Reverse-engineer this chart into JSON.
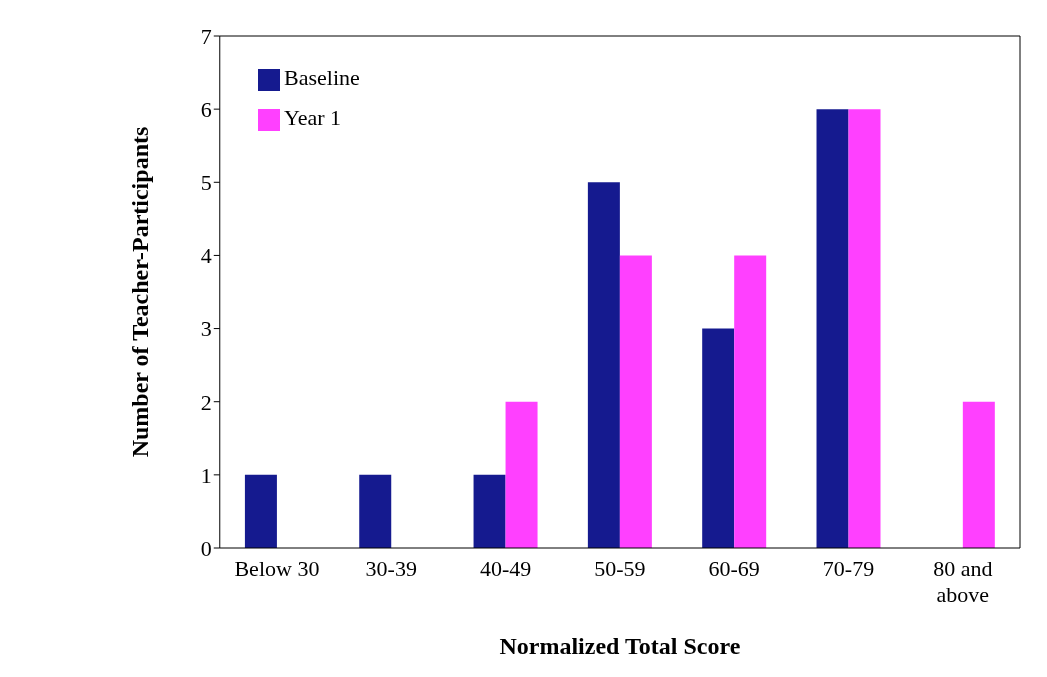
{
  "chart_data": {
    "type": "bar",
    "xlabel": "Normalized Total Score",
    "ylabel": "Number of Teacher-Participants",
    "categories": [
      "Below 30",
      "30-39",
      "40-49",
      "50-59",
      "60-69",
      "70-79",
      "80 and above"
    ],
    "series": [
      {
        "name": "Baseline",
        "color": "#151a8f",
        "values": [
          1,
          1,
          1,
          5,
          3,
          6,
          0
        ]
      },
      {
        "name": "Year 1",
        "color": "#ff40ff",
        "values": [
          0,
          0,
          2,
          4,
          4,
          6,
          2
        ]
      }
    ],
    "ylim": [
      0,
      7
    ],
    "yticks": [
      0,
      1,
      2,
      3,
      4,
      5,
      6,
      7
    ],
    "grid": false,
    "legend": "top left"
  }
}
